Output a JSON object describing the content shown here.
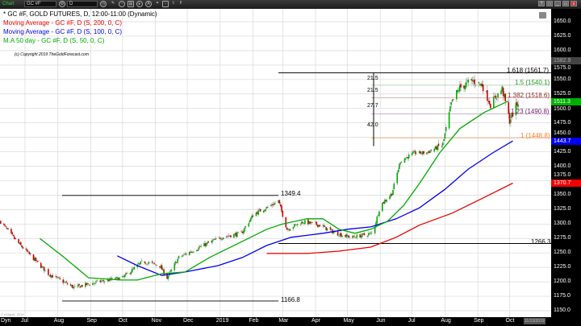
{
  "toolbar": {
    "chart_tab": "Chart",
    "symbol": "GC #F",
    "interval": "D",
    "icons": [
      "clock-icon",
      "pencil-icon",
      "indicator-icon",
      "window-icon",
      "play-icon",
      "alert-icon",
      "link-icon",
      "comment-icon",
      "twitter-icon",
      "facebook-icon"
    ],
    "window_buttons": [
      "?",
      "□",
      "_",
      "▭",
      "x"
    ]
  },
  "legend": {
    "title": "* GC #F, GOLD FUTURES, D, 12:00-11:00 (Dynamic)",
    "ma200": "Moving Average - GC #F, D (S, 200, 0, C)",
    "ma100": "Moving Average - GC #F, D (S, 100, 0, C)",
    "ma50": "M.A 50 day - GC #F, D (S, 50, 0, C)",
    "copyright": "(c) Copyright 2019 TheGoldForecast.com",
    "watermark": "© eSignal, 2019"
  },
  "colors": {
    "ma200": "#ee0000",
    "ma100": "#0000ee",
    "ma50": "#00aa00",
    "up": "#00aa00",
    "down": "#cc0000",
    "fib_1618": "#000000",
    "fib_15": "#229922",
    "fib_1382": "#8b2a2a",
    "fib_123": "#6a1e6a",
    "fib_1": "#ff7f27"
  },
  "axes": {
    "y_ticks": [
      "1650.0",
      "1625.0",
      "1600.0",
      "1575.0",
      "1550.0",
      "1525.0",
      "1500.0",
      "1475.0",
      "1450.0",
      "1425.0",
      "1400.0",
      "1375.0",
      "1350.0",
      "1325.0",
      "1300.0",
      "1275.0",
      "1250.0",
      "1225.0",
      "1200.0",
      "1175.0",
      "1150.0"
    ],
    "x_labels": [
      "Jul",
      "Aug",
      "Sep",
      "Oct",
      "Nov",
      "Dec",
      "2019",
      "Feb",
      "Mar",
      "Apr",
      "May",
      "Jun",
      "Jul",
      "Aug",
      "Sep",
      "Oct"
    ],
    "dyn_label": "Dyn",
    "date_box": "11/13/2019"
  },
  "badges": {
    "last": "1511.3",
    "ma100": "1443.7",
    "ma200": "1370.7",
    "top": "1582.9"
  },
  "annotations": {
    "high_2019_feb": "1349.4",
    "low_2018_aug": "1166.8",
    "support": "1266.3",
    "fib": [
      "1.618 (1561.7)",
      "1.5 (1540.1)",
      "1.382 (1518.6)",
      "1.23 (1490.8)",
      "1 (1448.8)"
    ],
    "range_labels": [
      "21.5",
      "21.5",
      "27.7",
      "42.0"
    ]
  },
  "chart_data": {
    "type": "candlestick",
    "title": "GC #F, GOLD FUTURES, D",
    "ylim": [
      1150,
      1650
    ],
    "xlim": [
      "2018-06-08",
      "2019-10-20"
    ],
    "grid": true,
    "legend_position": "top-left",
    "price_path": [
      [
        "2018-06-08",
        1304
      ],
      [
        "2018-06-23",
        1270
      ],
      [
        "2018-07-08",
        1242
      ],
      [
        "2018-07-23",
        1214
      ],
      [
        "2018-08-16",
        1190
      ],
      [
        "2018-09-08",
        1200
      ],
      [
        "2018-10-01",
        1207
      ],
      [
        "2018-10-20",
        1235
      ],
      [
        "2018-11-05",
        1228
      ],
      [
        "2018-11-12",
        1207
      ],
      [
        "2018-11-23",
        1242
      ],
      [
        "2018-12-16",
        1263
      ],
      [
        "2019-01-02",
        1277
      ],
      [
        "2019-01-21",
        1284
      ],
      [
        "2019-02-02",
        1318
      ],
      [
        "2019-02-18",
        1332
      ],
      [
        "2019-02-25",
        1340
      ],
      [
        "2019-03-05",
        1291
      ],
      [
        "2019-03-20",
        1304
      ],
      [
        "2019-04-05",
        1298
      ],
      [
        "2019-04-20",
        1284
      ],
      [
        "2019-05-05",
        1277
      ],
      [
        "2019-05-25",
        1284
      ],
      [
        "2019-06-01",
        1332
      ],
      [
        "2019-06-12",
        1353
      ],
      [
        "2019-06-20",
        1409
      ],
      [
        "2019-07-03",
        1423
      ],
      [
        "2019-07-14",
        1423
      ],
      [
        "2019-07-30",
        1437
      ],
      [
        "2019-08-07",
        1507
      ],
      [
        "2019-08-14",
        1534
      ],
      [
        "2019-08-26",
        1548
      ],
      [
        "2019-09-05",
        1541
      ],
      [
        "2019-09-13",
        1507
      ],
      [
        "2019-09-24",
        1534
      ],
      [
        "2019-10-01",
        1479
      ],
      [
        "2019-10-09",
        1511.3
      ]
    ],
    "series": [
      {
        "name": "Moving Average - GC #F, D (S, 200, 0, C)",
        "points": [
          [
            "2019-02-14",
            1249
          ],
          [
            "2019-03-24",
            1249
          ],
          [
            "2019-04-23",
            1253
          ],
          [
            "2019-05-23",
            1260
          ],
          [
            "2019-06-16",
            1277
          ],
          [
            "2019-07-08",
            1298
          ],
          [
            "2019-08-08",
            1319
          ],
          [
            "2019-09-07",
            1346
          ],
          [
            "2019-10-04",
            1370.7
          ]
        ]
      },
      {
        "name": "Moving Average - GC #F, D (S, 100, 0, C)",
        "points": [
          [
            "2018-09-26",
            1245
          ],
          [
            "2018-10-15",
            1228
          ],
          [
            "2018-11-07",
            1211
          ],
          [
            "2018-11-29",
            1217
          ],
          [
            "2018-12-30",
            1228
          ],
          [
            "2019-01-22",
            1242
          ],
          [
            "2019-02-14",
            1263
          ],
          [
            "2019-03-09",
            1277
          ],
          [
            "2019-04-08",
            1284
          ],
          [
            "2019-05-01",
            1291
          ],
          [
            "2019-05-23",
            1295
          ],
          [
            "2019-06-16",
            1309
          ],
          [
            "2019-07-08",
            1328
          ],
          [
            "2019-08-01",
            1360
          ],
          [
            "2019-08-23",
            1395
          ],
          [
            "2019-09-15",
            1423
          ],
          [
            "2019-10-04",
            1443.7
          ]
        ]
      },
      {
        "name": "M.A 50 day - GC #F, D (S, 50, 0, C)",
        "points": [
          [
            "2018-07-15",
            1275
          ],
          [
            "2018-08-07",
            1242
          ],
          [
            "2018-08-30",
            1207
          ],
          [
            "2018-09-30",
            1203
          ],
          [
            "2018-10-15",
            1203
          ],
          [
            "2018-11-07",
            1214
          ],
          [
            "2018-11-29",
            1217
          ],
          [
            "2018-12-22",
            1242
          ],
          [
            "2019-01-22",
            1270
          ],
          [
            "2019-02-14",
            1291
          ],
          [
            "2019-03-01",
            1300
          ],
          [
            "2019-03-24",
            1309
          ],
          [
            "2019-04-08",
            1309
          ],
          [
            "2019-04-23",
            1291
          ],
          [
            "2019-05-08",
            1284
          ],
          [
            "2019-05-23",
            1291
          ],
          [
            "2019-06-08",
            1305
          ],
          [
            "2019-06-23",
            1332
          ],
          [
            "2019-07-08",
            1370
          ],
          [
            "2019-07-27",
            1423
          ],
          [
            "2019-08-15",
            1465
          ],
          [
            "2019-09-07",
            1493
          ],
          [
            "2019-09-30",
            1513
          ]
        ]
      }
    ],
    "levels": [
      {
        "label": "1349.4",
        "value": 1349.4
      },
      {
        "label": "1166.8",
        "value": 1166.8
      },
      {
        "label": "1266.3",
        "value": 1266.3
      },
      {
        "label": "1.618 (1561.7)",
        "value": 1561.7
      },
      {
        "label": "1.5 (1540.1)",
        "value": 1540.1
      },
      {
        "label": "1.382 (1518.6)",
        "value": 1518.6
      },
      {
        "label": "1.23 (1490.8)",
        "value": 1490.8
      },
      {
        "label": "1 (1448.8)",
        "value": 1448.8
      }
    ]
  }
}
